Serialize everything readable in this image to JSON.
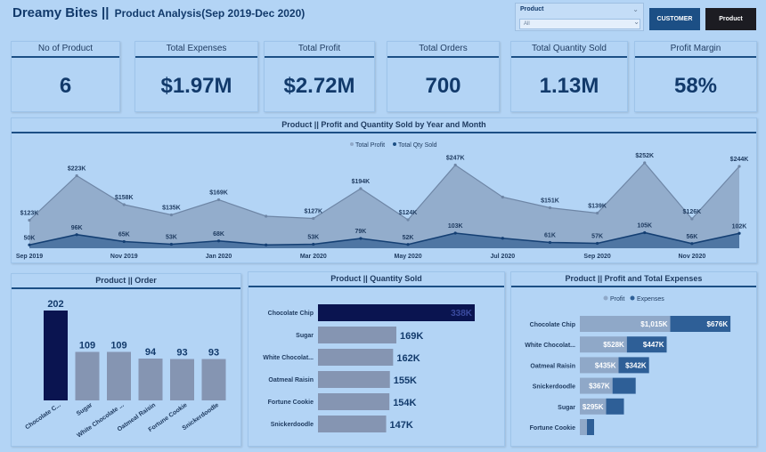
{
  "header": {
    "brand": "Dreamy Bites ||",
    "subtitle": "Product Analysis(Sep 2019-Dec 2020)"
  },
  "slicer": {
    "label": "Product",
    "value": "All"
  },
  "buttons": {
    "customer": "CUSTOMER",
    "product": "Product"
  },
  "kpis": [
    {
      "title": "No of Product",
      "value": "6"
    },
    {
      "title": "Total Expenses",
      "value": "$1.97M"
    },
    {
      "title": "Total Profit",
      "value": "$2.72M"
    },
    {
      "title": "Total Orders",
      "value": "700"
    },
    {
      "title": "Total Quantity Sold",
      "value": "1.13M"
    },
    {
      "title": "Profit Margin",
      "value": "58%"
    }
  ],
  "colors": {
    "dark_navy": "#0a1450",
    "bar_gray": "#8595b2",
    "profit": "#8fa8c8",
    "expenses": "#2e5f97",
    "line_dark": "#1c4f85"
  },
  "chart_data": [
    {
      "type": "area",
      "title": "Product || Profit and Quantity Sold by Year and Month",
      "legend": [
        "Total Profit",
        "Total Qty Sold"
      ],
      "x": [
        "Sep 2019",
        "Oct 2019",
        "Nov 2019",
        "Dec 2019",
        "Jan 2020",
        "Feb 2020",
        "Mar 2020",
        "Apr 2020",
        "May 2020",
        "Jun 2020",
        "Jul 2020",
        "Aug 2020",
        "Sep 2020",
        "Oct 2020",
        "Nov 2020",
        "Dec 2020"
      ],
      "x_tick_labels": [
        "Sep 2019",
        "Nov 2019",
        "Jan 2020",
        "Mar 2020",
        "May 2020",
        "Jul 2020",
        "Sep 2020",
        "Nov 2020"
      ],
      "series": [
        {
          "name": "Total Profit",
          "values": [
            123,
            223,
            158,
            135,
            169,
            132,
            127,
            194,
            124,
            247,
            175,
            151,
            139,
            252,
            126,
            244
          ],
          "labels": [
            "$123K",
            "$223K",
            "$158K",
            "$135K",
            "$169K",
            "",
            "$127K",
            "$194K",
            "$124K",
            "$247K",
            "",
            "$151K",
            "$139K",
            "$252K",
            "$126K",
            "$244K"
          ]
        },
        {
          "name": "Total Qty Sold",
          "values": [
            50,
            96,
            65,
            53,
            68,
            50,
            53,
            79,
            52,
            103,
            80,
            61,
            57,
            105,
            56,
            102
          ],
          "labels": [
            "50K",
            "96K",
            "65K",
            "53K",
            "68K",
            "",
            "53K",
            "79K",
            "52K",
            "103K",
            "",
            "61K",
            "57K",
            "105K",
            "56K",
            "102K"
          ]
        }
      ]
    },
    {
      "type": "bar",
      "title": "Product || Order",
      "categories": [
        "Chocolate C...",
        "Sugar",
        "White Chocolate ...",
        "Oatmeal Raisin",
        "Fortune Cookie",
        "Snickerdoodle"
      ],
      "values": [
        202,
        109,
        109,
        94,
        93,
        93
      ]
    },
    {
      "type": "bar",
      "title": "Product || Quantity Sold",
      "categories": [
        "Chocolate Chip",
        "Sugar",
        "White Chocolat...",
        "Oatmeal Raisin",
        "Fortune Cookie",
        "Snickerdoodle"
      ],
      "values": [
        338,
        169,
        162,
        155,
        154,
        147
      ],
      "labels": [
        "338K",
        "169K",
        "162K",
        "155K",
        "154K",
        "147K"
      ]
    },
    {
      "type": "bar",
      "title": "Product || Profit and Total Expenses",
      "legend": [
        "Profit",
        "Expenses"
      ],
      "categories": [
        "Chocolate Chip",
        "White Chocolat...",
        "Oatmeal Raisin",
        "Snickerdoodle",
        "Sugar",
        "Fortune Cookie"
      ],
      "series": [
        {
          "name": "Profit",
          "values": [
            1015,
            528,
            435,
            367,
            295,
            80
          ],
          "labels": [
            "$1,015K",
            "$528K",
            "$435K",
            "$367K",
            "$295K",
            ""
          ]
        },
        {
          "name": "Expenses",
          "values": [
            676,
            447,
            342,
            260,
            200,
            80
          ],
          "labels": [
            "$676K",
            "$447K",
            "$342K",
            "",
            "",
            ""
          ]
        }
      ]
    }
  ]
}
